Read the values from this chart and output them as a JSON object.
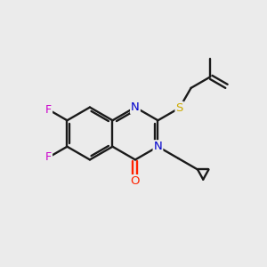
{
  "bg_color": "#ebebeb",
  "bond_color": "#1a1a1a",
  "n_color": "#0000cc",
  "o_color": "#ff2200",
  "f_color": "#cc00cc",
  "s_color": "#ccaa00",
  "line_width": 1.7,
  "figsize": [
    3.0,
    3.0
  ],
  "dpi": 100,
  "bl": 1.0,
  "xlim": [
    0,
    10
  ],
  "ylim": [
    0,
    10
  ]
}
